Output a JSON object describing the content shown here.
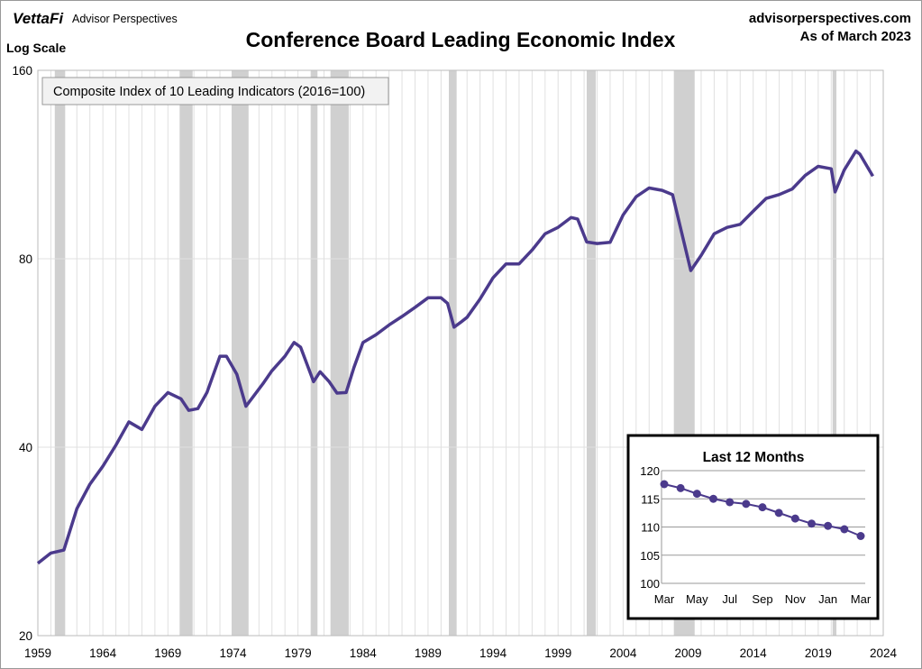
{
  "header": {
    "logo": "VettaFi",
    "brand": "Advisor Perspectives",
    "site": "advisorperspectives.com",
    "as_of": "As of March 2023",
    "scale_note": "Log Scale"
  },
  "colors": {
    "line": "#4B3A8C",
    "recession": "#D0D0D0",
    "grid": "#E0E0E0"
  },
  "chart_data": [
    {
      "type": "line",
      "title": "Conference Board Leading Economic Index",
      "legend": "Composite Index of 10 Leading Indicators (2016=100)",
      "yscale": "log",
      "ylim": [
        20,
        160
      ],
      "yticks": [
        20,
        40,
        80,
        160
      ],
      "xlim": [
        1959,
        2024
      ],
      "xticks": [
        1959,
        1964,
        1969,
        1974,
        1979,
        1984,
        1989,
        1994,
        1999,
        2004,
        2009,
        2014,
        2019,
        2024
      ],
      "recessions": [
        [
          1960.3,
          1961.1
        ],
        [
          1969.9,
          1970.9
        ],
        [
          1973.9,
          1975.2
        ],
        [
          1980.0,
          1980.5
        ],
        [
          1981.5,
          1982.9
        ],
        [
          1990.6,
          1991.2
        ],
        [
          2001.2,
          2001.9
        ],
        [
          2007.9,
          2009.5
        ],
        [
          2020.1,
          2020.4
        ]
      ],
      "x": [
        1959,
        1960,
        1961,
        1962,
        1963,
        1964,
        1965,
        1966,
        1967,
        1968,
        1969,
        1970,
        1970.6,
        1971.3,
        1972,
        1973,
        1973.5,
        1974.3,
        1975,
        1975.5,
        1976.3,
        1977,
        1978,
        1978.7,
        1979.2,
        1980.2,
        1980.7,
        1981.4,
        1982,
        1982.7,
        1983.3,
        1984,
        1985,
        1986,
        1987,
        1988,
        1989,
        1990,
        1990.5,
        1991,
        1991.5,
        1992,
        1993,
        1994,
        1995,
        1996,
        1997,
        1998,
        1999,
        2000,
        2000.5,
        2001.2,
        2002,
        2003,
        2004,
        2005,
        2006,
        2007,
        2007.8,
        2008.5,
        2009.2,
        2010,
        2011,
        2012,
        2013,
        2014,
        2015,
        2016,
        2017,
        2018,
        2019,
        2020,
        2020.3,
        2021,
        2021.9,
        2022.2,
        2023.2
      ],
      "y": [
        26.1,
        27.1,
        27.4,
        31.9,
        34.9,
        37.3,
        40.3,
        43.9,
        42.7,
        46.5,
        48.9,
        47.8,
        45.8,
        46.1,
        48.9,
        55.9,
        55.9,
        52.3,
        46.5,
        48,
        50.5,
        53,
        55.9,
        58.8,
        57.8,
        50.9,
        52.8,
        50.9,
        48.8,
        48.9,
        53.6,
        58.8,
        60.5,
        62.7,
        64.7,
        66.9,
        69.3,
        69.3,
        67.9,
        62.2,
        63.3,
        64.5,
        69,
        74.6,
        78.5,
        78.5,
        82.6,
        87.7,
        89.8,
        93.1,
        92.6,
        85.1,
        84.6,
        85,
        94,
        100.5,
        103.8,
        102.9,
        101.3,
        88.1,
        76.6,
        81,
        87.7,
        89.8,
        90.8,
        95.3,
        99.9,
        101.3,
        103.4,
        108.7,
        112.4,
        111.4,
        102.3,
        110.9,
        118.9,
        117.6,
        108.4
      ]
    },
    {
      "type": "line",
      "title": "Last 12 Months",
      "ylim": [
        100,
        120
      ],
      "yticks": [
        100,
        105,
        110,
        115,
        120
      ],
      "categories": [
        "Mar",
        "Apr",
        "May",
        "Jun",
        "Jul",
        "Aug",
        "Sep",
        "Oct",
        "Nov",
        "Dec",
        "Jan",
        "Feb",
        "Mar"
      ],
      "xtick_labels": [
        "Mar",
        "May",
        "Jul",
        "Sep",
        "Nov",
        "Jan",
        "Mar"
      ],
      "values": [
        117.6,
        116.9,
        115.9,
        115.0,
        114.4,
        114.1,
        113.5,
        112.5,
        111.5,
        110.6,
        110.2,
        109.6,
        108.4
      ]
    }
  ]
}
